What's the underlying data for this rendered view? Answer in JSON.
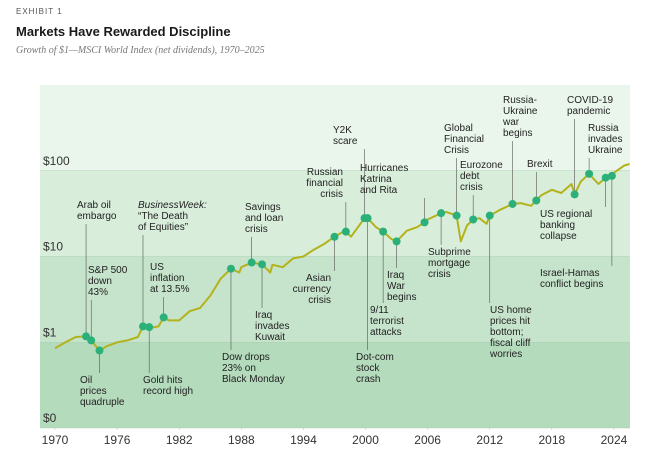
{
  "chart_data": {
    "type": "line",
    "label": "EXHIBIT 1",
    "title": "Markets Have Rewarded Discipline",
    "subtitle": "Growth of $1—MSCI World Index (net dividends), 1970–2025",
    "log_scale": true,
    "color": "#b3b21c",
    "event_color": "#2bb07a",
    "xlim": [
      1968.55,
      2025.55
    ],
    "xticks": [
      1970,
      1976,
      1982,
      1988,
      1994,
      2000,
      2006,
      2012,
      2018,
      2024
    ],
    "ylim": [
      0.1,
      1000
    ],
    "yticks": [
      {
        "value": 0.1,
        "label": "$0"
      },
      {
        "value": 1,
        "label": "$1"
      },
      {
        "value": 10,
        "label": "$10"
      },
      {
        "value": 100,
        "label": "$100"
      }
    ],
    "x": [
      1970,
      1971,
      1972,
      1973,
      1973.5,
      1974.3,
      1975,
      1976,
      1977,
      1978,
      1978.5,
      1979,
      1980,
      1980.5,
      1981,
      1982,
      1983,
      1984,
      1985,
      1986,
      1987,
      1987.8,
      1988,
      1989,
      1990,
      1990.8,
      1991,
      1992,
      1993,
      1994,
      1995,
      1996,
      1997,
      1998,
      1998.6,
      1999.9,
      2000.2,
      2001,
      2001.7,
      2002.5,
      2003,
      2004,
      2005,
      2005.7,
      2006,
      2007.3,
      2007.8,
      2008.8,
      2009.2,
      2009.8,
      2010.4,
      2011,
      2011.7,
      2012,
      2013,
      2014.2,
      2015,
      2016,
      2016.5,
      2017,
      2018,
      2018.9,
      2019.9,
      2020.2,
      2020.8,
      2021.6,
      2022.5,
      2023.2,
      2023.8,
      2024,
      2025,
      2025.5
    ],
    "values": [
      0.85,
      1.0,
      1.15,
      1.17,
      1.05,
      0.8,
      0.9,
      1.0,
      1.05,
      1.15,
      1.53,
      1.45,
      1.53,
      1.95,
      1.8,
      1.8,
      2.3,
      2.5,
      3.5,
      5.5,
      7.2,
      6.5,
      7.5,
      8.5,
      8.1,
      6.5,
      8,
      7.5,
      9.5,
      10,
      12,
      14,
      17,
      20,
      17,
      28,
      28,
      22,
      19.5,
      16,
      15,
      20,
      22,
      25,
      27,
      32,
      33,
      30,
      15,
      23,
      27,
      28,
      24,
      30,
      35,
      41,
      42,
      39,
      45,
      52,
      60,
      55,
      70,
      53,
      75,
      92,
      70,
      83,
      87,
      95,
      115,
      120
    ],
    "events": [
      {
        "label": [
          "Arab oil",
          "embargo"
        ],
        "x": 1973,
        "value": 1.17
      },
      {
        "label": [
          "S&P 500",
          "down",
          "43%"
        ],
        "x": 1973.5,
        "value": 1.05
      },
      {
        "label": [
          "Oil",
          "prices",
          "quadruple"
        ],
        "x": 1974.3,
        "value": 0.8
      },
      {
        "label": [
          "BusinessWeek:",
          "“The Death",
          "of Equities”"
        ],
        "x": 1978.5,
        "value": 1.53
      },
      {
        "label": [
          "Gold hits",
          "record high"
        ],
        "x": 1979.1,
        "value": 1.5
      },
      {
        "label": [
          "US",
          "inflation",
          "at 13.5%"
        ],
        "x": 1980.5,
        "value": 1.95
      },
      {
        "label": [
          "Dow drops",
          "23% on",
          "Black Monday"
        ],
        "x": 1987,
        "value": 7.2
      },
      {
        "label": [
          "Savings",
          "and loan",
          "crisis"
        ],
        "x": 1989,
        "value": 8.5
      },
      {
        "label": [
          "Iraq",
          "invades",
          "Kuwait"
        ],
        "x": 1990,
        "value": 8.1
      },
      {
        "label": [
          "Asian",
          "currency",
          "crisis"
        ],
        "x": 1997,
        "value": 17
      },
      {
        "label": [
          "Russian",
          "financial",
          "crisis"
        ],
        "x": 1998.1,
        "value": 19.5
      },
      {
        "label": [
          "Y2K",
          "scare"
        ],
        "x": 1999.9,
        "value": 28
      },
      {
        "label": [
          "Dot-com",
          "stock",
          "crash"
        ],
        "x": 2000.2,
        "value": 28
      },
      {
        "label": [
          "9/11",
          "terrorist",
          "attacks"
        ],
        "x": 2001.7,
        "value": 19.5
      },
      {
        "label": [
          "Iraq",
          "War",
          "begins"
        ],
        "x": 2003,
        "value": 15
      },
      {
        "label": [
          "Hurricanes",
          "Katrina",
          "and Rita"
        ],
        "x": 2005.7,
        "value": 25
      },
      {
        "label": [
          "Subprime",
          "mortgage",
          "crisis"
        ],
        "x": 2007.3,
        "value": 32
      },
      {
        "label": [
          "Global",
          "Financial",
          "Crisis"
        ],
        "x": 2008.8,
        "value": 30
      },
      {
        "label": [
          "Eurozone",
          "debt",
          "crisis"
        ],
        "x": 2010.4,
        "value": 27
      },
      {
        "label": [
          "US home",
          "prices hit",
          "bottom;",
          "fiscal cliff",
          "worries"
        ],
        "x": 2012,
        "value": 30
      },
      {
        "label": [
          "Russia-",
          "Ukraine",
          "war",
          "begins"
        ],
        "x": 2014.2,
        "value": 41
      },
      {
        "label": [
          "Brexit"
        ],
        "x": 2016.5,
        "value": 45
      },
      {
        "label": [
          "COVID-19",
          "pandemic"
        ],
        "x": 2020.2,
        "value": 53
      },
      {
        "label": [
          "Russia",
          "invades",
          "Ukraine"
        ],
        "x": 2021.6,
        "value": 92
      },
      {
        "label": [
          "US regional",
          "banking",
          "collapse"
        ],
        "x": 2023.2,
        "value": 83
      },
      {
        "label": [
          "Israel-Hamas",
          "conflict begins"
        ],
        "x": 2023.8,
        "value": 87
      }
    ]
  }
}
